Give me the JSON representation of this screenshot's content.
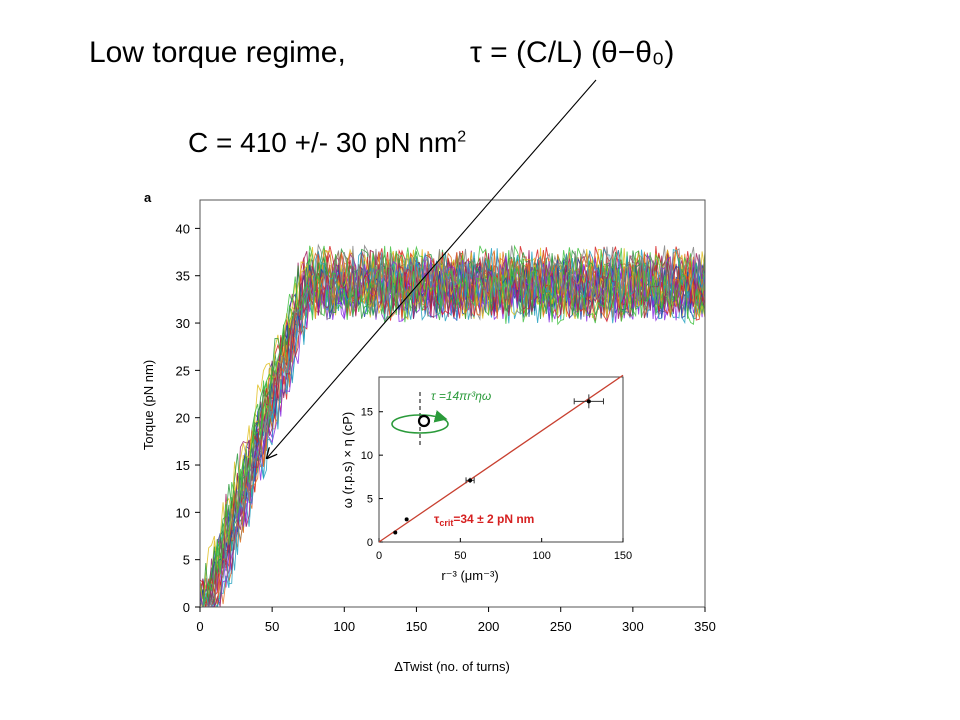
{
  "slide": {
    "title_left": "Low torque regime,",
    "title_formula": "τ = (C/L) (θ−θ₀)",
    "c_value_base": "C = 410 +/- 30 pN nm",
    "c_value_exp": "2"
  },
  "chart_data": [
    {
      "type": "line",
      "panel_label": "a",
      "xlabel": "ΔTwist (no. of turns)",
      "ylabel": "Torque (pN nm)",
      "xlim": [
        0,
        350
      ],
      "ylim": [
        0,
        43
      ],
      "xticks": [
        0,
        50,
        100,
        150,
        200,
        250,
        300,
        350
      ],
      "yticks": [
        0,
        5,
        10,
        15,
        20,
        25,
        30,
        35,
        40
      ],
      "grid": false,
      "series_count": 30,
      "colors": [
        "#1f3fa8",
        "#d62020",
        "#e0c020",
        "#2a9a3a",
        "#8a2be2",
        "#e07020",
        "#20a0c0",
        "#a02060",
        "#808080",
        "#40c040"
      ],
      "model": {
        "linear_slope_pN_nm_per_turn": 0.5,
        "plateau_start_turns": 65,
        "plateau_mean_pN_nm": 34,
        "noise_amplitude": 3
      }
    },
    {
      "type": "scatter",
      "inset": true,
      "xlabel": "r⁻³ (μm⁻³)",
      "ylabel": "ω (r.p.s) × η (cP)",
      "xlim": [
        0,
        150
      ],
      "ylim": [
        0,
        19
      ],
      "xticks": [
        0,
        50,
        100,
        150
      ],
      "yticks": [
        0,
        5,
        10,
        15
      ],
      "points": [
        {
          "x": 10,
          "y": 1.1,
          "xerr": 0,
          "yerr": 0
        },
        {
          "x": 17,
          "y": 2.6,
          "xerr": 0,
          "yerr": 0
        },
        {
          "x": 56,
          "y": 7.1,
          "xerr": 2.5,
          "yerr": 0.3
        },
        {
          "x": 129,
          "y": 16.2,
          "xerr": 9,
          "yerr": 0.8
        }
      ],
      "fit_line": {
        "x": [
          0,
          150
        ],
        "y": [
          0,
          19.2
        ],
        "color": "#c84030"
      },
      "equation_text": "τ =14πr³ηω",
      "equation_color": "#2a9a3a",
      "tau_crit_main": "τ",
      "tau_crit_sub": "crit",
      "tau_crit_value": "=34 ± 2 pN nm",
      "tau_crit_color": "#d62020"
    }
  ]
}
